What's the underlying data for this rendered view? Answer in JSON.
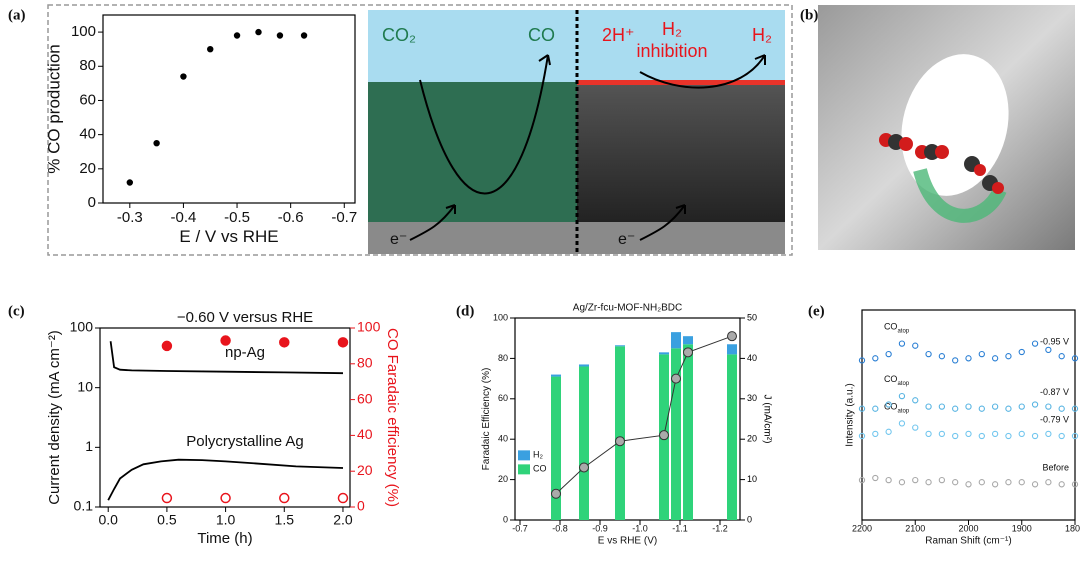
{
  "panels": [
    "(a)",
    "(b)",
    "(c)",
    "(d)",
    "(e)"
  ],
  "schematic": {
    "left_in": "CO₂",
    "left_out": "CO",
    "right_in": "2H⁺",
    "right_mid_1": "H₂",
    "right_mid_2": "inhibition",
    "right_out": "H₂",
    "electron_left": "e⁻",
    "electron_right": "e⁻"
  },
  "chart_data": [
    {
      "type": "scatter",
      "xlabel": "E / V vs RHE",
      "ylabel": "% CO production",
      "color": "#000000",
      "x": [
        -0.3,
        -0.35,
        -0.4,
        -0.45,
        -0.5,
        -0.54,
        -0.58,
        -0.625
      ],
      "values": [
        12,
        35,
        74,
        90,
        98,
        100,
        98,
        98
      ],
      "xlim": [
        -0.25,
        -0.72
      ],
      "xticks": [
        -0.3,
        -0.4,
        -0.5,
        -0.6,
        -0.7
      ],
      "ylim": [
        0,
        110
      ],
      "yticks": [
        0,
        20,
        40,
        60,
        80,
        100
      ]
    },
    {
      "type": "line",
      "title": "−0.60 V versus RHE",
      "xlabel": "Time (h)",
      "ylabel": "Current density (mA cm⁻²)",
      "y2label": "CO Faradaic efficiency (%)",
      "ylog": true,
      "y2color": "#e8141c",
      "series": [
        {
          "name": "np-Ag",
          "color": "#000000",
          "x": [
            0.02,
            0.05,
            0.1,
            0.2,
            0.5,
            1.0,
            1.5,
            2.0
          ],
          "values": [
            60,
            22,
            20,
            19.5,
            19,
            18.5,
            18,
            17.5
          ]
        },
        {
          "name": "Polycrystalline Ag",
          "color": "#000000",
          "x": [
            0.0,
            0.05,
            0.1,
            0.2,
            0.3,
            0.45,
            0.6,
            0.8,
            1.0,
            1.3,
            1.6,
            2.0
          ],
          "values": [
            0.13,
            0.2,
            0.3,
            0.42,
            0.52,
            0.58,
            0.62,
            0.61,
            0.58,
            0.53,
            0.48,
            0.45
          ]
        },
        {
          "color": "#e8141c",
          "axis": "y2",
          "mode": "markers",
          "marker": "filled",
          "x": [
            0.5,
            1.0,
            1.5,
            2.0
          ],
          "values": [
            90,
            93,
            92,
            92
          ]
        },
        {
          "color": "#e8141c",
          "axis": "y2",
          "mode": "markers",
          "marker": "open",
          "x": [
            0.5,
            1.0,
            1.5,
            2.0
          ],
          "values": [
            5,
            5,
            5,
            5
          ]
        }
      ],
      "xlim": [
        -0.07,
        2.06
      ],
      "xticks": [
        {
          "value": 0,
          "label": "0.0"
        },
        0.5,
        {
          "value": 1,
          "label": "1.0"
        },
        1.5,
        {
          "value": 2,
          "label": "2.0"
        }
      ],
      "ylim": [
        0.1,
        100
      ],
      "yticks": [
        0.1,
        1,
        10,
        100
      ],
      "y2lim": [
        0,
        100
      ],
      "y2ticks": [
        0,
        20,
        40,
        60,
        80,
        100
      ]
    },
    {
      "type": "bar",
      "title": "Ag/Zr-fcu-MOF-NH₂BDC",
      "xlabel": "E vs RHE (V)",
      "ylabel": "Faradaic Efficiency (%)",
      "y2label": "J (mA/cm²)",
      "legend": "left",
      "x": [
        -0.79,
        -0.86,
        -0.95,
        -1.06,
        -1.09,
        -1.12,
        -1.23
      ],
      "series": [
        {
          "name": "CO",
          "color": "#2fd37a",
          "values": [
            71,
            76,
            86,
            82,
            85,
            87,
            82
          ]
        },
        {
          "name": "H₂",
          "color": "#3aa0e0",
          "values": [
            1,
            1,
            0.5,
            1,
            8,
            4,
            5
          ]
        },
        {
          "color": "#333333",
          "axis": "y2",
          "mode": "line+markers",
          "values": [
            6.5,
            13,
            19.5,
            21,
            35,
            41.5,
            45.5
          ]
        }
      ],
      "xlim": [
        -0.6875,
        -1.25
      ],
      "xticks": [
        -0.7,
        -0.8,
        -0.9,
        {
          "value": -1,
          "label": "-1.0"
        },
        -1.1,
        -1.2
      ],
      "ylim": [
        0,
        100
      ],
      "yticks": [
        0,
        20,
        40,
        60,
        80,
        100
      ],
      "y2lim": [
        0,
        50
      ],
      "y2ticks": [
        0,
        10,
        20,
        30,
        40,
        50
      ]
    },
    {
      "type": "scatter",
      "xlabel": "Raman Shift (cm⁻¹)",
      "ylabel": "Intensity (a.u.)",
      "x": [
        2200,
        2175,
        2150,
        2125,
        2100,
        2075,
        2050,
        2025,
        2000,
        1975,
        1950,
        1925,
        1900,
        1875,
        1850,
        1825,
        1800
      ],
      "series": [
        {
          "name": "Before",
          "color": "#a8a8a8",
          "values": [
            1.9,
            2.0,
            1.9,
            1.8,
            1.9,
            1.8,
            1.9,
            1.8,
            1.7,
            1.8,
            1.7,
            1.8,
            1.8,
            1.7,
            1.8,
            1.7,
            1.7
          ]
        },
        {
          "name": "-0.79 V",
          "color": "#72c6ee",
          "annotation": "CO",
          "annotation_sub": "atop",
          "values": [
            4.0,
            4.1,
            4.2,
            4.6,
            4.4,
            4.1,
            4.1,
            4.0,
            4.1,
            4.0,
            4.1,
            4.0,
            4.1,
            4.0,
            4.1,
            4.0,
            4.0
          ]
        },
        {
          "name": "-0.87 V",
          "color": "#58b4e2",
          "annotation": "CO",
          "annotation_sub": "atop",
          "values": [
            5.3,
            5.3,
            5.5,
            5.9,
            5.7,
            5.4,
            5.4,
            5.3,
            5.4,
            5.3,
            5.4,
            5.3,
            5.4,
            5.5,
            5.4,
            5.3,
            5.3
          ]
        },
        {
          "name": "-0.95 V",
          "color": "#2a7fd4",
          "annotation": "CO",
          "annotation_sub": "atop",
          "values": [
            7.6,
            7.7,
            7.9,
            8.4,
            8.3,
            7.9,
            7.8,
            7.6,
            7.7,
            7.9,
            7.7,
            7.8,
            8.0,
            8.4,
            8.1,
            7.8,
            7.7
          ]
        }
      ],
      "xlim": [
        2200,
        1800
      ],
      "xticks": [
        2200,
        2100,
        2000,
        1900,
        1800
      ],
      "ylim": [
        0,
        10
      ]
    }
  ]
}
